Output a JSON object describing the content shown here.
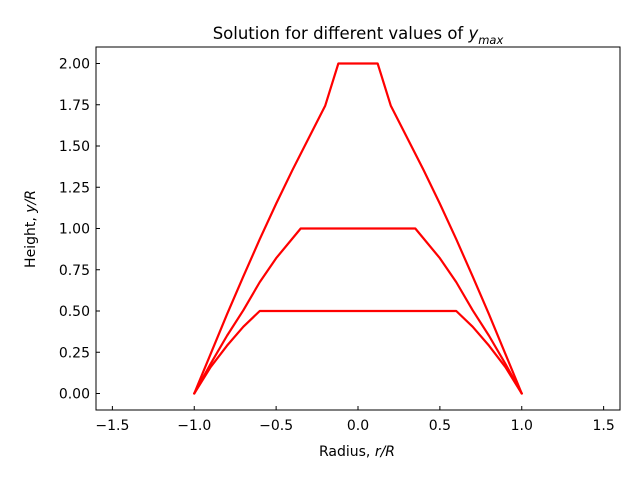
{
  "chart_data": {
    "type": "line",
    "title_prefix": "Solution for different values of ",
    "title_var": "y",
    "title_sub": "max",
    "xlabel_prefix": "Radius, ",
    "xlabel_var": "r/R",
    "ylabel_prefix": "Height, ",
    "ylabel_var": "y/R",
    "xlim": [
      -1.6,
      1.6
    ],
    "ylim": [
      -0.1,
      2.1
    ],
    "xticks": [
      -1.5,
      -1.0,
      -0.5,
      0.0,
      0.5,
      1.0,
      1.5
    ],
    "xtick_labels": [
      "−1.5",
      "−1.0",
      "−0.5",
      "0.0",
      "0.5",
      "1.0",
      "1.5"
    ],
    "yticks": [
      0.0,
      0.25,
      0.5,
      0.75,
      1.0,
      1.25,
      1.5,
      1.75,
      2.0
    ],
    "ytick_labels": [
      "0.00",
      "0.25",
      "0.50",
      "0.75",
      "1.00",
      "1.25",
      "1.50",
      "1.75",
      "2.00"
    ],
    "grid": false,
    "line_color": "#ff0000",
    "series": [
      {
        "x": [
          -1.0,
          -0.9,
          -0.8,
          -0.7,
          -0.6,
          0.6,
          0.7,
          0.8,
          0.9,
          1.0
        ],
        "y": [
          0.0,
          0.16,
          0.29,
          0.405,
          0.5,
          0.5,
          0.405,
          0.29,
          0.16,
          0.0
        ]
      },
      {
        "x": [
          -1.0,
          -0.9,
          -0.8,
          -0.7,
          -0.6,
          -0.5,
          -0.35,
          0.35,
          0.5,
          0.6,
          0.7,
          0.8,
          0.9,
          1.0
        ],
        "y": [
          0.0,
          0.18,
          0.35,
          0.505,
          0.675,
          0.82,
          1.0,
          1.0,
          0.82,
          0.675,
          0.505,
          0.35,
          0.18,
          0.0
        ]
      },
      {
        "x": [
          -1.0,
          -0.9,
          -0.8,
          -0.7,
          -0.6,
          -0.5,
          -0.4,
          -0.3,
          -0.2,
          -0.12,
          0.12,
          0.2,
          0.3,
          0.4,
          0.5,
          0.6,
          0.7,
          0.8,
          0.9,
          1.0
        ],
        "y": [
          0.0,
          0.24,
          0.48,
          0.71,
          0.935,
          1.15,
          1.355,
          1.55,
          1.745,
          2.0,
          2.0,
          1.745,
          1.55,
          1.355,
          1.15,
          0.935,
          0.71,
          0.48,
          0.24,
          0.0
        ]
      }
    ]
  }
}
